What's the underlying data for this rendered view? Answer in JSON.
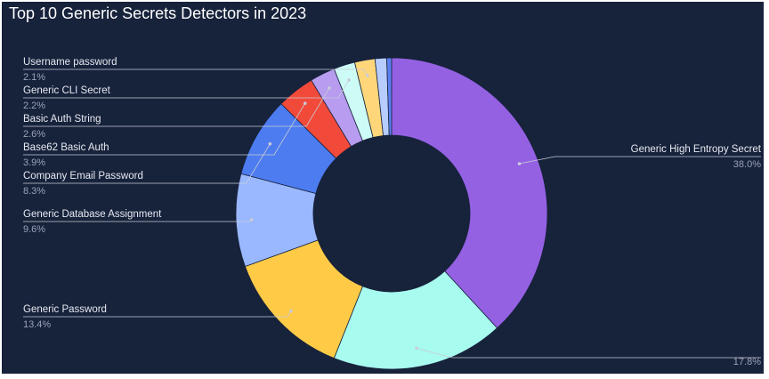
{
  "chart_data": {
    "type": "donut",
    "title": "Top 10 Generic Secrets Detectors in 2023",
    "categories": [
      "Generic High Entropy Secret",
      null,
      "Generic Password",
      "Generic Database Assignment",
      "Company Email Password",
      "Base62 Basic Auth",
      "Basic Auth String",
      "Generic CLI Secret",
      "Username password",
      null,
      null
    ],
    "values": [
      38.0,
      17.8,
      13.4,
      9.6,
      8.3,
      3.9,
      2.6,
      2.2,
      2.1,
      1.2,
      0.5
    ],
    "value_labels": [
      "38.0%",
      "17.8%",
      "13.4%",
      "9.6%",
      "8.3%",
      "3.9%",
      "2.6%",
      "2.2%",
      "2.1%",
      null,
      null
    ],
    "colors": [
      "#9461e3",
      "#a8fbef",
      "#ffcb47",
      "#9ab8ff",
      "#4d7cf0",
      "#f24a3a",
      "#b79cf0",
      "#cdfcf6",
      "#ffd77a",
      "#b7ccff",
      "#5b7ff0"
    ]
  }
}
